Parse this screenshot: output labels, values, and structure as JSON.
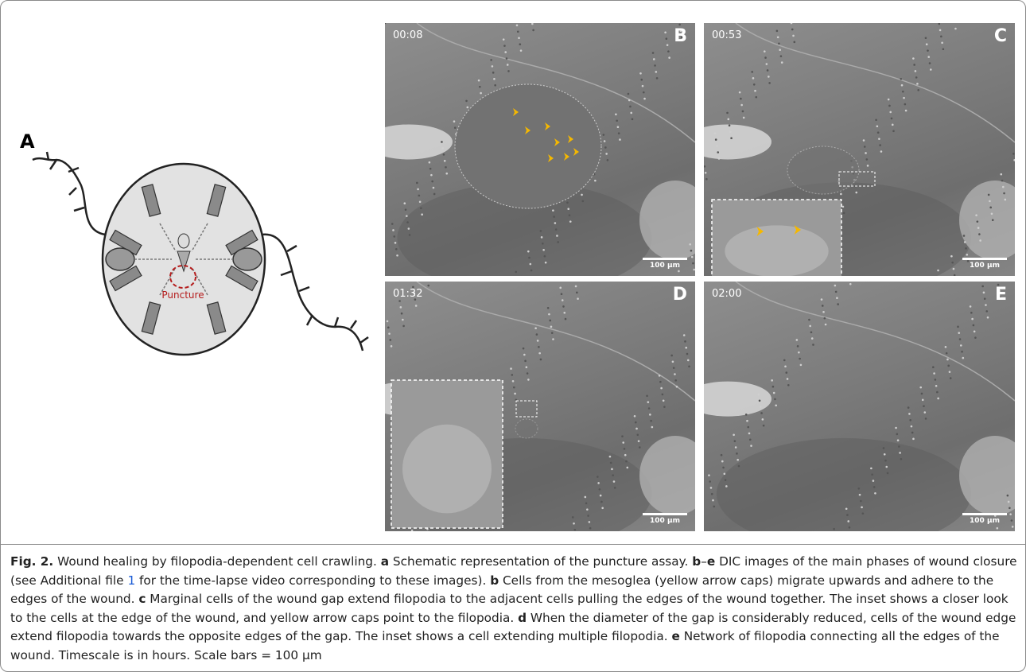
{
  "panel_a": {
    "label": "A",
    "annotation": "Puncture"
  },
  "panels": [
    {
      "label": "B",
      "time": "00:08",
      "scale_bar": "100 µm"
    },
    {
      "label": "C",
      "time": "00:53",
      "scale_bar": "100 µm"
    },
    {
      "label": "D",
      "time": "01:32",
      "scale_bar": "100 µm"
    },
    {
      "label": "E",
      "time": "02:00",
      "scale_bar": "100 µm"
    }
  ],
  "caption": {
    "segments": [
      {
        "text": "Fig. 2.",
        "bold": true
      },
      {
        "text": " Wound healing by filopodia-dependent cell crawling. "
      },
      {
        "text": "a",
        "bold": true
      },
      {
        "text": " Schematic representation of the puncture assay. "
      },
      {
        "text": "b",
        "bold": true
      },
      {
        "text": "–"
      },
      {
        "text": "e",
        "bold": true
      },
      {
        "text": " DIC images of the main phases of wound closure (see Additional file "
      },
      {
        "text": "1",
        "link": true
      },
      {
        "text": " for the time-lapse video corresponding to these images). "
      },
      {
        "text": "b",
        "bold": true
      },
      {
        "text": " Cells from the mesoglea (yellow arrow caps) migrate upwards and adhere to the edges of the wound. "
      },
      {
        "text": "c",
        "bold": true
      },
      {
        "text": " Marginal cells of the wound gap extend filopodia to the adjacent cells pulling the edges of the wound together. The inset shows a closer look to the cells at the edge of the wound, and yellow arrow caps point to the filopodia. "
      },
      {
        "text": "d",
        "bold": true
      },
      {
        "text": " When the diameter of the gap is considerably reduced, cells of the wound edge extend filopodia towards the opposite edges of the gap. The inset shows a cell extending multiple filopodia. "
      },
      {
        "text": "e",
        "bold": true
      },
      {
        "text": " Network of filopodia connecting all the edges of the wound. Timescale is in hours. Scale bars = 100 µm"
      }
    ]
  }
}
